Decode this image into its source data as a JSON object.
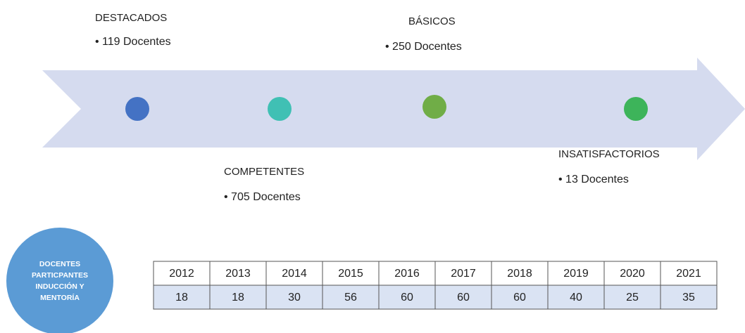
{
  "timeline": {
    "items": [
      {
        "label": "DESTACADOS",
        "detail": "• 119 Docentes"
      },
      {
        "label": "COMPETENTES",
        "detail": "• 705 Docentes"
      },
      {
        "label": "BÁSICOS",
        "detail": "• 250 Docentes"
      },
      {
        "label": "INSATISFACTORIOS",
        "detail": "• 13 Docentes"
      }
    ]
  },
  "badge": {
    "lines": [
      "DOCENTES",
      "PARTICPANTES",
      "INDUCCIÓN  Y",
      "MENTORÍA"
    ]
  },
  "table": {
    "rows": [
      [
        2012,
        2013,
        2014,
        2015,
        2016,
        2017,
        2018,
        2019,
        2020,
        2021
      ],
      [
        18,
        18,
        30,
        56,
        60,
        60,
        60,
        40,
        25,
        35
      ]
    ]
  }
}
